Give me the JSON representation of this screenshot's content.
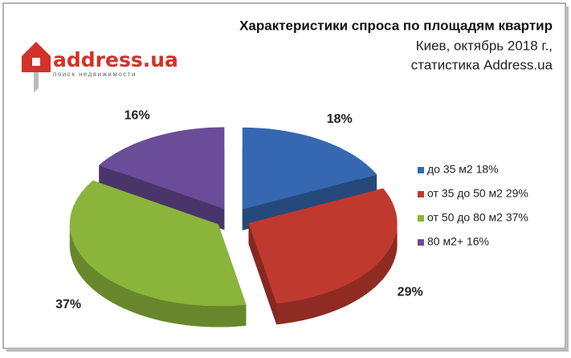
{
  "logo": {
    "name": "address.ua",
    "tagline": "поиск недвижимости"
  },
  "chart_data": {
    "type": "pie3d",
    "title": "Характеристики спроса по площадям квартир",
    "subtitle": [
      "Киев, октябрь 2018 г.,",
      "статистика Address.ua"
    ],
    "categories": [
      "до 35 м2  18%",
      "от 35 до 50 м2 29%",
      "от 50 до 80 м2 37%",
      "80 м2+ 16%"
    ],
    "values": [
      18,
      29,
      37,
      16
    ],
    "value_labels": [
      "18%",
      "29%",
      "37%",
      "16%"
    ],
    "colors": [
      "#3568b0",
      "#c0392f",
      "#8ab43a",
      "#6a4c98"
    ],
    "legend": "right"
  }
}
